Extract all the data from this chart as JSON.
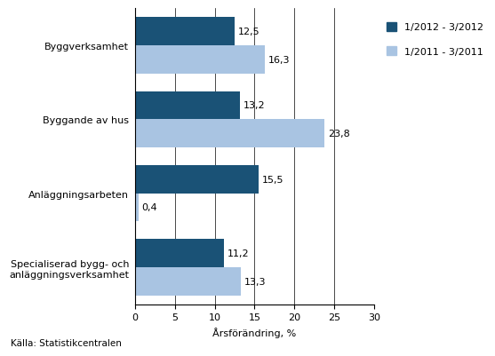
{
  "categories": [
    "Specialiserad bygg- och\nanläggningsverksamhet",
    "Anläggningsarbeten",
    "Byggande av hus",
    "Byggverksamhet"
  ],
  "series1_label": "1/2012 - 3/2012",
  "series2_label": "1/2011 - 3/2011",
  "series1_values": [
    11.2,
    15.5,
    13.2,
    12.5
  ],
  "series2_values": [
    13.3,
    0.4,
    23.8,
    16.3
  ],
  "series1_color": "#1A5276",
  "series2_color": "#A9C4E2",
  "xlim": [
    0,
    30
  ],
  "xticks": [
    0,
    5,
    10,
    15,
    20,
    25,
    30
  ],
  "xlabel": "Årsförändring, %",
  "source": "Källa: Statistikcentralen",
  "bar_height": 0.38,
  "annotation_fontsize": 8,
  "label_fontsize": 8,
  "tick_fontsize": 8,
  "background_color": "#FFFFFF"
}
